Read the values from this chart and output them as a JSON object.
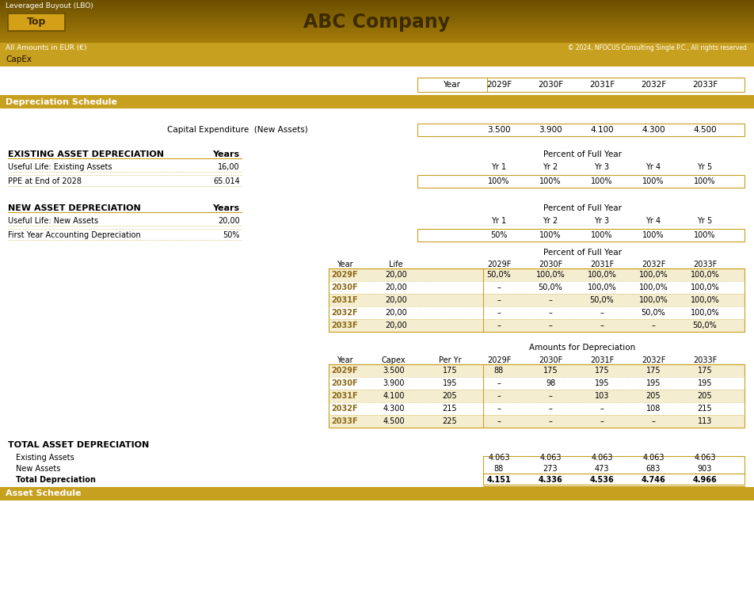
{
  "title": "ABC Company",
  "header_text": "Leveraged Buyout (LBO)",
  "amounts_label": "All Amounts in EUR (€)",
  "copyright": "© 2024, NFOCUS Consulting Single P.C., All rights reserved.",
  "page_label": "CapEx",
  "btn_label": "Top",
  "section1": "Depreciation Schedule",
  "section2": "Asset Schedule",
  "years": [
    "2029F",
    "2030F",
    "2031F",
    "2032F",
    "2033F"
  ],
  "capex_values": [
    "3.500",
    "3.900",
    "4.100",
    "4.300",
    "4.500"
  ],
  "existing_asset_label": "EXISTING ASSET DEPRECIATION",
  "existing_asset_years_label": "Years",
  "useful_life_existing": "Useful Life: Existing Assets",
  "useful_life_existing_val": "16,00",
  "ppe_label": "PPE at End of 2028",
  "ppe_val": "65.014",
  "existing_pct_header": "Percent of Full Year",
  "existing_yr_labels": [
    "Yr 1",
    "Yr 2",
    "Yr 3",
    "Yr 4",
    "Yr 5"
  ],
  "existing_pct_vals": [
    "100%",
    "100%",
    "100%",
    "100%",
    "100%"
  ],
  "new_asset_label": "NEW ASSET DEPRECIATION",
  "new_asset_years_label": "Years",
  "useful_life_new": "Useful Life: New Assets",
  "useful_life_new_val": "20,00",
  "first_year_label": "First Year Accounting Depreciation",
  "first_year_val": "50%",
  "new_pct_header": "Percent of Full Year",
  "new_yr_labels": [
    "Yr 1",
    "Yr 2",
    "Yr 3",
    "Yr 4",
    "Yr 5"
  ],
  "new_pct_vals": [
    "50%",
    "100%",
    "100%",
    "100%",
    "100%"
  ],
  "pct_full_year_header": "Percent of Full Year",
  "pct_table_cols": [
    "Year",
    "Life",
    "2029F",
    "2030F",
    "2031F",
    "2032F",
    "2033F"
  ],
  "pct_table_rows": [
    [
      "2029F",
      "20,00",
      "50,0%",
      "100,0%",
      "100,0%",
      "100,0%",
      "100,0%"
    ],
    [
      "2030F",
      "20,00",
      "–",
      "50,0%",
      "100,0%",
      "100,0%",
      "100,0%"
    ],
    [
      "2031F",
      "20,00",
      "–",
      "–",
      "50,0%",
      "100,0%",
      "100,0%"
    ],
    [
      "2032F",
      "20,00",
      "–",
      "–",
      "–",
      "50,0%",
      "100,0%"
    ],
    [
      "2033F",
      "20,00",
      "–",
      "–",
      "–",
      "–",
      "50,0%"
    ]
  ],
  "amounts_header": "Amounts for Depreciation",
  "amounts_table_cols": [
    "Year",
    "Capex",
    "Per Yr",
    "2029F",
    "2030F",
    "2031F",
    "2032F",
    "2033F"
  ],
  "amounts_table_rows": [
    [
      "2029F",
      "3.500",
      "175",
      "88",
      "175",
      "175",
      "175",
      "175"
    ],
    [
      "2030F",
      "3.900",
      "195",
      "–",
      "98",
      "195",
      "195",
      "195"
    ],
    [
      "2031F",
      "4.100",
      "205",
      "–",
      "–",
      "103",
      "205",
      "205"
    ],
    [
      "2032F",
      "4.300",
      "215",
      "–",
      "–",
      "–",
      "108",
      "215"
    ],
    [
      "2033F",
      "4.500",
      "225",
      "–",
      "–",
      "–",
      "–",
      "113"
    ]
  ],
  "total_header": "TOTAL ASSET DEPRECIATION",
  "total_rows": [
    [
      "Existing Assets",
      "4.063",
      "4.063",
      "4.063",
      "4.063",
      "4.063"
    ],
    [
      "New Assets",
      "88",
      "273",
      "473",
      "683",
      "903"
    ],
    [
      "Total Depreciation",
      "4.151",
      "4.336",
      "4.536",
      "4.746",
      "4.966"
    ]
  ],
  "bg_color": "#FFFFFF",
  "header_bg": "#C8A020",
  "section_bg": "#C8A020",
  "btn_bg": "#DAA520",
  "table_border": "#C8A020",
  "text_dark": "#000000",
  "text_gold": "#C8A020",
  "text_white": "#FFFFFF",
  "row_label_color": "#8B6914",
  "header_gradient_start": "#6B4F00",
  "header_gradient_end": "#D4A017"
}
